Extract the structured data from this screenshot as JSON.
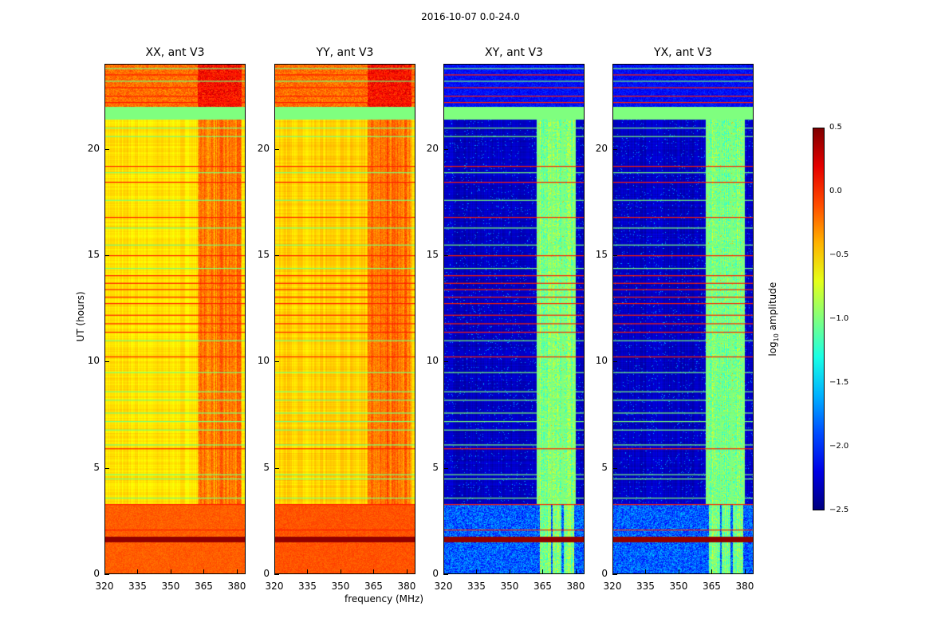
{
  "suptitle": "2016-10-07 0.0-24.0",
  "chart_data": {
    "type": "heatmap",
    "title": "2016-10-07 0.0-24.0",
    "xlabel": "frequency (MHz)",
    "ylabel": "UT (hours)",
    "xlim": [
      320,
      384
    ],
    "ylim": [
      0,
      24
    ],
    "xticks": [
      "320",
      "335",
      "350",
      "365",
      "380"
    ],
    "yticks": [
      "0",
      "5",
      "10",
      "15",
      "20"
    ],
    "colormap": "jet",
    "colorbar": {
      "label_prefix": "log",
      "label_sub": "10",
      "label_suffix": " amplitude",
      "range": [
        -2.5,
        0.5
      ],
      "ticks": [
        "0.5",
        "0.0",
        "−0.5",
        "−1.0",
        "−1.5",
        "−2.0",
        "−2.5"
      ]
    },
    "red_flag_rows_hours": [
      23.5,
      22.9,
      22.5,
      22.2,
      19.2,
      18.45,
      16.8,
      15.0,
      14.06,
      13.7,
      13.4,
      13.05,
      12.75,
      12.2,
      11.8,
      11.4,
      10.24,
      5.92,
      3.3,
      2.1
    ],
    "green_flag_rows_hours": [
      23.8,
      23.2,
      21.0,
      20.6,
      18.9,
      17.6,
      16.3,
      15.5,
      14.4,
      11.0,
      9.5,
      8.6,
      8.2,
      7.6,
      7.2,
      6.8,
      6.1,
      4.7,
      4.5,
      3.6
    ],
    "panels": [
      {
        "title": "XX, ant V3",
        "base": -0.55,
        "low_band_hours": [
          0,
          3.3
        ],
        "low_band_value": -0.15,
        "dark_row_hours": 1.65,
        "rfi_bands_mhz": [
          [
            362,
            382
          ]
        ],
        "rfi_value": -0.25,
        "green_band_hours": [
          21.4,
          22.0
        ],
        "top_value": -0.2
      },
      {
        "title": "YY, ant V3",
        "base": -0.5,
        "low_band_hours": [
          0,
          3.3
        ],
        "low_band_value": -0.12,
        "dark_row_hours": 1.65,
        "rfi_bands_mhz": [
          [
            362,
            382
          ]
        ],
        "rfi_value": -0.2,
        "green_band_hours": [
          21.4,
          22.0
        ],
        "top_value": -0.2
      },
      {
        "title": "XY, ant V3",
        "base": -2.3,
        "low_band_hours": [
          0,
          3.3
        ],
        "low_band_value": -1.85,
        "dark_row_hours": 1.65,
        "rfi_bands_mhz": [
          [
            363.5,
            368.5
          ],
          [
            369.5,
            373.5
          ],
          [
            374.5,
            379
          ]
        ],
        "rfi_value": -1.0,
        "green_band_hours": [
          21.4,
          22.0
        ],
        "top_value": -2.1
      },
      {
        "title": "YX, ant V3",
        "base": -2.3,
        "low_band_hours": [
          0,
          3.3
        ],
        "low_band_value": -1.85,
        "dark_row_hours": 1.65,
        "rfi_bands_mhz": [
          [
            363.5,
            368.5
          ],
          [
            369.5,
            373.5
          ],
          [
            374.5,
            379
          ]
        ],
        "rfi_value": -1.0,
        "green_band_hours": [
          21.4,
          22.0
        ],
        "top_value": -2.1
      }
    ]
  }
}
